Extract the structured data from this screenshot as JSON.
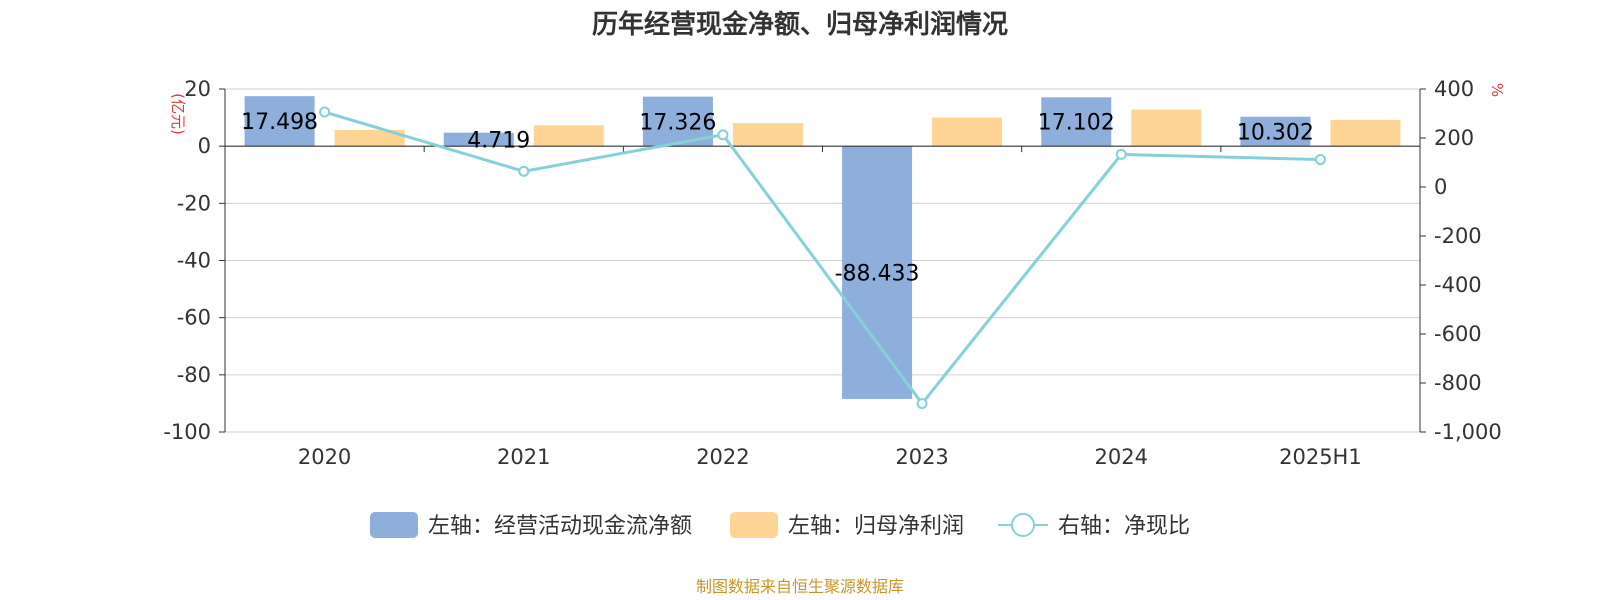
{
  "chart_data": {
    "type": "bar",
    "title": "历年经营现金净额、归母净利润情况",
    "categories": [
      "2020",
      "2021",
      "2022",
      "2023",
      "2024",
      "2025H1"
    ],
    "left_axis": {
      "unit": "(亿元)",
      "ylim": [
        -100,
        20
      ],
      "ticks": [
        "20",
        "0",
        "-20",
        "-40",
        "-60",
        "-80",
        "-100"
      ]
    },
    "right_axis": {
      "unit": "%",
      "ylim": [
        -1000,
        400
      ],
      "ticks": [
        "400",
        "200",
        "0",
        "-200",
        "-400",
        "-600",
        "-800",
        "-1,000"
      ]
    },
    "series": [
      {
        "name": "左轴：经营活动现金流净额",
        "type": "bar",
        "axis": "left",
        "color": "#8eaedb",
        "values": [
          17.498,
          4.719,
          17.326,
          -88.433,
          17.102,
          10.302
        ],
        "labels": [
          "17.498",
          "4.719",
          "17.326",
          "-88.433",
          "17.102",
          "10.302"
        ]
      },
      {
        "name": "左轴：归母净利润",
        "type": "bar",
        "axis": "left",
        "color": "#fed595",
        "values": [
          5.7,
          7.3,
          8.1,
          10.0,
          12.8,
          9.2
        ]
      },
      {
        "name": "右轴：净现比",
        "type": "line",
        "axis": "right",
        "color": "#86d1d8",
        "values": [
          306,
          64,
          213,
          -884,
          133,
          112
        ]
      }
    ],
    "grid": true,
    "legend_position": "bottom"
  },
  "source_note": "制图数据来自恒生聚源数据库"
}
